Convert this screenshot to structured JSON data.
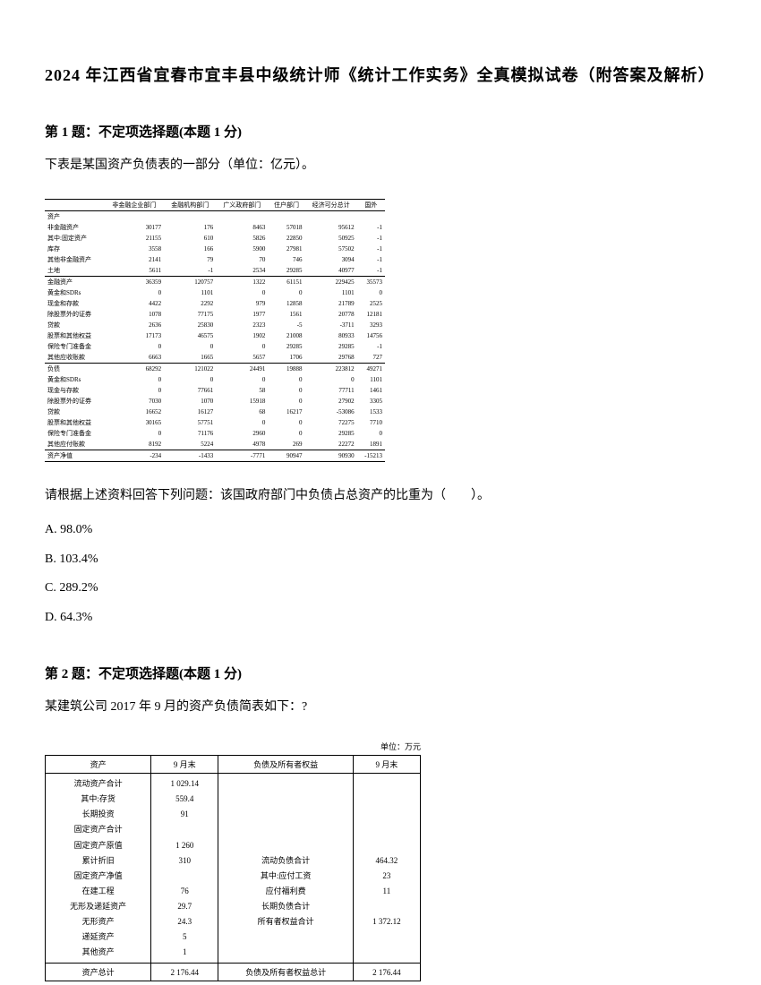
{
  "title": "2024 年江西省宜春市宜丰县中级统计师《统计工作实务》全真模拟试卷（附答案及解析）",
  "q1": {
    "header": "第 1 题：不定项选择题(本题 1 分)",
    "text": "下表是某国资产负债表的一部分（单位：亿元）。",
    "table": {
      "headers": [
        "",
        "非金融企业部门",
        "金融机构部门",
        "广义政府部门",
        "住户部门",
        "经济可分总计",
        "国外"
      ],
      "rows": [
        [
          "资产",
          "",
          "",
          "",
          "",
          "",
          ""
        ],
        [
          "非金融资产",
          "30177",
          "176",
          "8463",
          "57018",
          "95612",
          "-1"
        ],
        [
          "其中:固定资产",
          "21155",
          "610",
          "5826",
          "22850",
          "50925",
          "-1"
        ],
        [
          "  库存",
          "3558",
          "166",
          "5900",
          "27981",
          "57502",
          "-1"
        ],
        [
          "其他非金融资产",
          "2141",
          "79",
          "70",
          "746",
          "3094",
          "-1"
        ],
        [
          "土地",
          "5611",
          "-1",
          "2534",
          "29285",
          "40977",
          "-1"
        ],
        [
          "金融资产",
          "36359",
          "120757",
          "1322",
          "61151",
          "229425",
          "35573"
        ],
        [
          "黄金和SDRs",
          "0",
          "1101",
          "0",
          "0",
          "1101",
          "0"
        ],
        [
          "现金和存款",
          "4422",
          "2292",
          "979",
          "12858",
          "21789",
          "2525"
        ],
        [
          "除股票外的证券",
          "1078",
          "77175",
          "1977",
          "1561",
          "20778",
          "12181"
        ],
        [
          "贷款",
          "2636",
          "25830",
          "2323",
          "-5",
          "-3711",
          "3293"
        ],
        [
          "股票和其他权益",
          "17173",
          "46575",
          "1902",
          "21008",
          "80933",
          "14756"
        ],
        [
          "保险专门准备金",
          "0",
          "0",
          "0",
          "29285",
          "29285",
          "-1"
        ],
        [
          "其他应收账款",
          "6663",
          "1665",
          "5657",
          "1706",
          "29768",
          "727"
        ],
        [
          "负债",
          "68292",
          "121022",
          "24491",
          "19888",
          "223812",
          "49271"
        ],
        [
          "黄金和SDRs",
          "0",
          "0",
          "0",
          "0",
          "0",
          "1101"
        ],
        [
          "现金与存款",
          "0",
          "77661",
          "58",
          "0",
          "77711",
          "1461"
        ],
        [
          "除股票外的证券",
          "7030",
          "1070",
          "15918",
          "0",
          "27902",
          "3305"
        ],
        [
          "贷款",
          "16652",
          "16127",
          "68",
          "16217",
          "-53086",
          "1533"
        ],
        [
          "股票和其他权益",
          "30165",
          "57751",
          "0",
          "0",
          "72275",
          "7710"
        ],
        [
          "保险专门准备金",
          "0",
          "71176",
          "2960",
          "0",
          "29285",
          "0"
        ],
        [
          "其他应付账款",
          "8192",
          "5224",
          "4978",
          "269",
          "22272",
          "1891"
        ],
        [
          "资产净值",
          "-234",
          "-1433",
          "-7771",
          "90947",
          "90930",
          "-15213"
        ]
      ]
    },
    "prompt": "请根据上述资料回答下列问题：该国政府部门中负债占总资产的比重为（　　）。",
    "options": [
      "A. 98.0%",
      "B. 103.4%",
      "C. 289.2%",
      "D. 64.3%"
    ]
  },
  "q2": {
    "header": "第 2 题：不定项选择题(本题 1 分)",
    "text": "某建筑公司 2017 年 9 月的资产负债简表如下：?",
    "unit": "单位：万元",
    "table": {
      "headers": [
        "资产",
        "9 月末",
        "负债及所有者权益",
        "9 月末"
      ],
      "asset_rows": [
        [
          "流动资产合计",
          "1 029.14"
        ],
        [
          "其中:存货",
          "559.4"
        ],
        [
          "长期投资",
          "91"
        ],
        [
          "固定资产合计",
          ""
        ],
        [
          "固定资产原值",
          "1 260"
        ],
        [
          "累计折旧",
          "310"
        ],
        [
          "固定资产净值",
          ""
        ],
        [
          "在建工程",
          "76"
        ],
        [
          "无形及递延资产",
          "29.7"
        ],
        [
          "无形资产",
          "24.3"
        ],
        [
          "递延资产",
          "5"
        ],
        [
          "其他资产",
          "1"
        ]
      ],
      "liab_rows": [
        [
          "流动负债合计",
          "464.32"
        ],
        [
          "其中:应付工资",
          "23"
        ],
        [
          "应付福利费",
          "11"
        ],
        [
          "长期负债合计",
          ""
        ],
        [
          "所有者权益合计",
          "1 372.12"
        ]
      ],
      "footer": [
        "资产总计",
        "2 176.44",
        "负债及所有者权益总计",
        "2 176.44"
      ]
    }
  }
}
